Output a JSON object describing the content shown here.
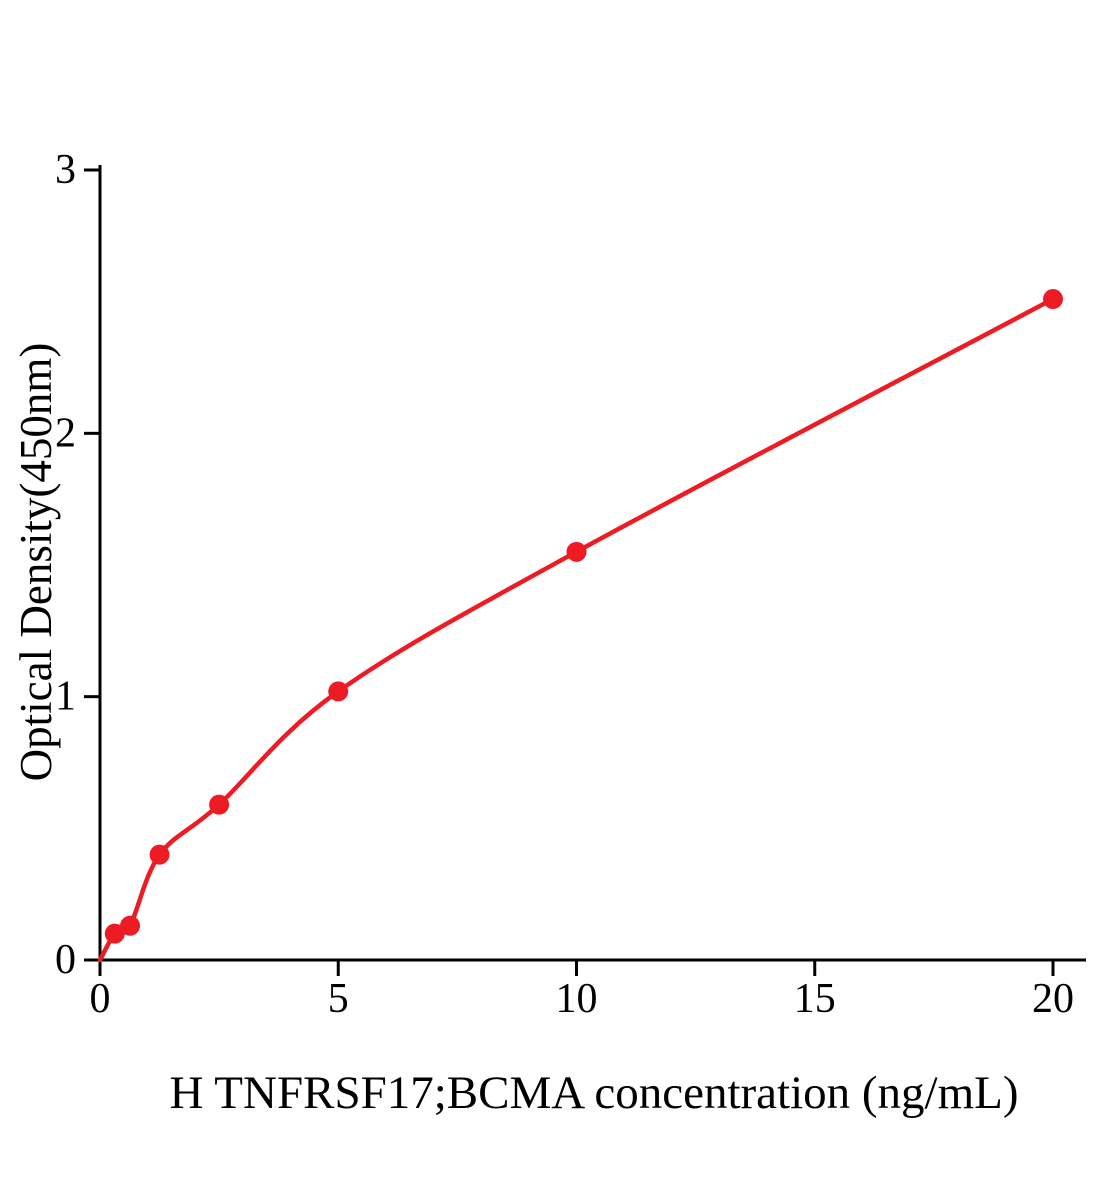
{
  "chart_data": {
    "type": "scatter",
    "title": "",
    "xlabel": "H TNFRSF17;BCMA concentration (ng/mL)",
    "ylabel": "Optical Density(450nm)",
    "x": [
      0.31,
      0.63,
      1.25,
      2.5,
      5,
      10,
      20
    ],
    "y": [
      0.1,
      0.13,
      0.4,
      0.59,
      1.02,
      1.55,
      2.51
    ],
    "curve_anchor_x": 0,
    "curve_anchor_y": 0,
    "xlim": [
      0,
      20
    ],
    "ylim": [
      0,
      3
    ],
    "xticks": [
      0,
      5,
      10,
      15,
      20
    ],
    "yticks": [
      0,
      1,
      2,
      3
    ],
    "grid": false,
    "legend": null,
    "line_color": "#ed1c24",
    "marker_color": "#ed1c24",
    "axis_color": "#000000",
    "fit": "smooth saturating curve through all points"
  }
}
